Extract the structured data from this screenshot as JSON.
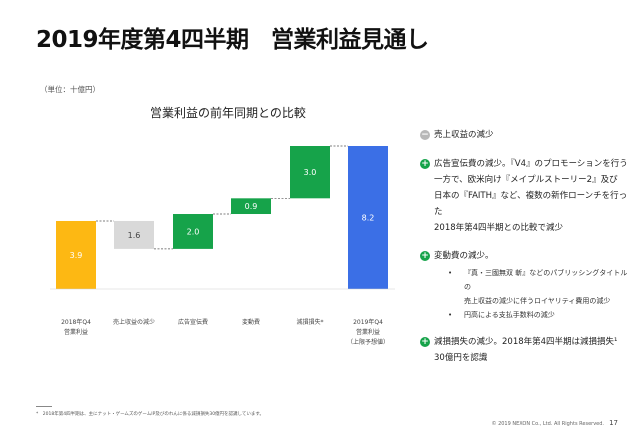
{
  "slide": {
    "title": "2019年度第4四半期　営業利益見通し",
    "unit_label": "（単位：十億円）",
    "footnote": "*　2018年第4四半期は、主にナット・ゲームズのゲームIP及びのれんに係る減損損失30億円を認識しています。",
    "copyright": "© 2019 NEXON Co., Ltd. All Rights Reserved.",
    "page_number": "17"
  },
  "chart_data": {
    "type": "waterfall",
    "title": "営業利益の前年同期との比較",
    "categories": [
      [
        "2018年Q4",
        "営業利益"
      ],
      [
        "売上収益の減少"
      ],
      [
        "広告宣伝費"
      ],
      [
        "変動費"
      ],
      [
        "減損損失*"
      ],
      [
        "2019年Q4",
        "営業利益",
        "（上限予想値）"
      ]
    ],
    "values": [
      3.9,
      -1.6,
      2.0,
      0.9,
      3.0,
      8.2
    ],
    "kinds": [
      "total",
      "decrease",
      "increase",
      "increase",
      "increase",
      "total"
    ],
    "value_labels": [
      "3.9",
      "1.6",
      "2.0",
      "0.9",
      "3.0",
      "8.2"
    ],
    "colors": {
      "start": "#FDB813",
      "decrease": "#D9D9D9",
      "increase": "#16A34A",
      "end": "#3B6FE6",
      "connector": "#555555"
    },
    "ylim": [
      0,
      8.2
    ],
    "grid": false,
    "legend": "none"
  },
  "bullets": [
    {
      "icon": "minus-circle-icon",
      "symbol": "−",
      "lines": [
        "売上収益の減少"
      ],
      "sub": []
    },
    {
      "icon": "plus-circle-icon",
      "symbol": "+",
      "lines": [
        "広告宣伝費の減少。『V4』のプロモーションを行う",
        "一方で、欧米向け『メイプルストーリー2』及び",
        "日本の『FAITH』など、複数の新作ローンチを行った",
        "2018年第4四半期との比較で減少"
      ],
      "sub": []
    },
    {
      "icon": "plus-circle-icon",
      "symbol": "+",
      "lines": [
        "変動費の減少。"
      ],
      "sub": [
        {
          "bullet": "•",
          "lines": [
            "『真・三國無双 斬』などのパブリッシングタイトルの",
            "売上収益の減少に伴うロイヤリティ費用の減少"
          ]
        },
        {
          "bullet": "•",
          "lines": [
            "円高による支払手数料の減少"
          ]
        }
      ]
    },
    {
      "icon": "plus-circle-icon",
      "symbol": "+",
      "lines": [
        "減損損失の減少。2018年第4四半期は減損損失¹",
        "30億円を認識"
      ],
      "sub": []
    }
  ]
}
